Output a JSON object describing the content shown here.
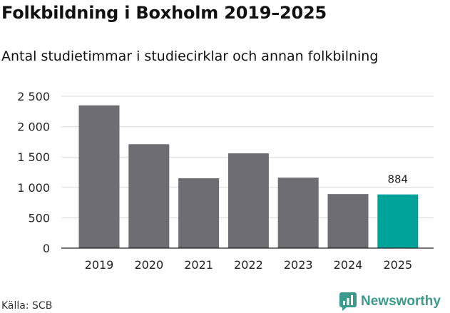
{
  "title": "Folkbildning i Boxholm 2019–2025",
  "subtitle": "Antal studietimmar i studiecirklar och annan folkbilning",
  "source": "Källa: SCB",
  "brand": {
    "name": "Newsworthy",
    "icon": "newsworthy-logo-icon",
    "color": "#3a9a8c"
  },
  "colors": {
    "bar": "#6d6d72",
    "highlight": "#00a399",
    "grid": "#d9d9d9",
    "axis": "#222222",
    "text": "#222222"
  },
  "chart_data": {
    "type": "bar",
    "categories": [
      "2019",
      "2020",
      "2021",
      "2022",
      "2023",
      "2024",
      "2025"
    ],
    "values": [
      2350,
      1710,
      1150,
      1560,
      1160,
      890,
      884
    ],
    "highlight_index": 6,
    "data_labels": [
      {
        "index": 6,
        "text": "884"
      }
    ],
    "ylim": [
      0,
      2500
    ],
    "yticks": [
      0,
      500,
      1000,
      1500,
      2000,
      2500
    ],
    "ytick_labels": [
      "0",
      "500",
      "1 000",
      "1 500",
      "2 000",
      "2 500"
    ],
    "grid": true,
    "xlabel": "",
    "ylabel": ""
  }
}
